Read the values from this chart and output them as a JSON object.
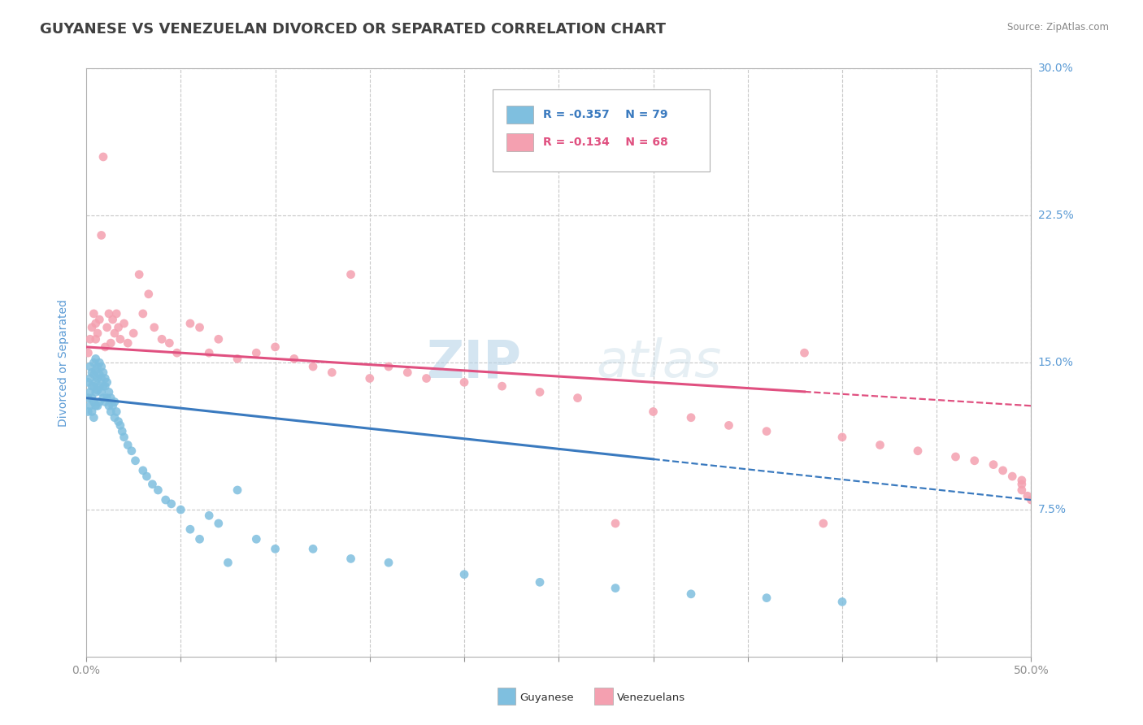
{
  "title": "GUYANESE VS VENEZUELAN DIVORCED OR SEPARATED CORRELATION CHART",
  "source_text": "Source: ZipAtlas.com",
  "xlabel": "",
  "ylabel": "Divorced or Separated",
  "xlim": [
    0.0,
    0.5
  ],
  "ylim": [
    0.0,
    0.3
  ],
  "ytick_positions": [
    0.075,
    0.15,
    0.225,
    0.3
  ],
  "ytick_labels": [
    "7.5%",
    "15.0%",
    "22.5%",
    "30.0%"
  ],
  "blue_color": "#7fbfdf",
  "pink_color": "#f4a0b0",
  "trend_blue_color": "#3a7abf",
  "trend_pink_color": "#e05080",
  "watermark_zip": "ZIP",
  "watermark_atlas": "atlas",
  "legend_r1": "R = -0.357",
  "legend_n1": "N = 79",
  "legend_r2": "R = -0.134",
  "legend_n2": "N = 68",
  "label1": "Guyanese",
  "label2": "Venezuelans",
  "title_color": "#404040",
  "axis_label_color": "#5b9bd5",
  "tick_label_color": "#5b9bd5",
  "grid_color": "#c8c8c8",
  "blue_trend_y_start": 0.132,
  "blue_trend_y_end": 0.08,
  "blue_trend_x_solid_end": 0.3,
  "blue_trend_x_end": 0.5,
  "pink_trend_y_start": 0.158,
  "pink_trend_y_end": 0.128,
  "pink_trend_x_solid_end": 0.38,
  "pink_trend_x_end": 0.5,
  "blue_scatter_x": [
    0.001,
    0.001,
    0.001,
    0.002,
    0.002,
    0.002,
    0.002,
    0.003,
    0.003,
    0.003,
    0.003,
    0.004,
    0.004,
    0.004,
    0.004,
    0.004,
    0.005,
    0.005,
    0.005,
    0.005,
    0.005,
    0.006,
    0.006,
    0.006,
    0.006,
    0.007,
    0.007,
    0.007,
    0.007,
    0.008,
    0.008,
    0.008,
    0.009,
    0.009,
    0.009,
    0.01,
    0.01,
    0.01,
    0.011,
    0.011,
    0.012,
    0.012,
    0.013,
    0.013,
    0.014,
    0.015,
    0.015,
    0.016,
    0.017,
    0.018,
    0.019,
    0.02,
    0.022,
    0.024,
    0.026,
    0.03,
    0.032,
    0.035,
    0.038,
    0.042,
    0.045,
    0.05,
    0.055,
    0.06,
    0.065,
    0.07,
    0.075,
    0.08,
    0.09,
    0.1,
    0.12,
    0.14,
    0.16,
    0.2,
    0.24,
    0.28,
    0.32,
    0.36,
    0.4
  ],
  "blue_scatter_y": [
    0.14,
    0.132,
    0.125,
    0.148,
    0.142,
    0.135,
    0.128,
    0.145,
    0.138,
    0.132,
    0.125,
    0.15,
    0.144,
    0.138,
    0.13,
    0.122,
    0.152,
    0.146,
    0.14,
    0.135,
    0.128,
    0.148,
    0.142,
    0.136,
    0.128,
    0.15,
    0.144,
    0.138,
    0.13,
    0.148,
    0.142,
    0.135,
    0.145,
    0.138,
    0.132,
    0.142,
    0.138,
    0.13,
    0.14,
    0.132,
    0.135,
    0.128,
    0.132,
    0.125,
    0.128,
    0.13,
    0.122,
    0.125,
    0.12,
    0.118,
    0.115,
    0.112,
    0.108,
    0.105,
    0.1,
    0.095,
    0.092,
    0.088,
    0.085,
    0.08,
    0.078,
    0.075,
    0.065,
    0.06,
    0.072,
    0.068,
    0.048,
    0.085,
    0.06,
    0.055,
    0.055,
    0.05,
    0.048,
    0.042,
    0.038,
    0.035,
    0.032,
    0.03,
    0.028
  ],
  "pink_scatter_x": [
    0.001,
    0.002,
    0.003,
    0.004,
    0.005,
    0.005,
    0.006,
    0.007,
    0.008,
    0.009,
    0.01,
    0.011,
    0.012,
    0.013,
    0.014,
    0.015,
    0.016,
    0.017,
    0.018,
    0.02,
    0.022,
    0.025,
    0.028,
    0.03,
    0.033,
    0.036,
    0.04,
    0.044,
    0.048,
    0.055,
    0.06,
    0.065,
    0.07,
    0.08,
    0.09,
    0.1,
    0.11,
    0.12,
    0.13,
    0.14,
    0.15,
    0.16,
    0.17,
    0.18,
    0.2,
    0.22,
    0.24,
    0.26,
    0.28,
    0.3,
    0.32,
    0.34,
    0.36,
    0.38,
    0.39,
    0.4,
    0.42,
    0.44,
    0.46,
    0.47,
    0.48,
    0.485,
    0.49,
    0.495,
    0.495,
    0.495,
    0.498,
    0.5
  ],
  "pink_scatter_y": [
    0.155,
    0.162,
    0.168,
    0.175,
    0.162,
    0.17,
    0.165,
    0.172,
    0.215,
    0.255,
    0.158,
    0.168,
    0.175,
    0.16,
    0.172,
    0.165,
    0.175,
    0.168,
    0.162,
    0.17,
    0.16,
    0.165,
    0.195,
    0.175,
    0.185,
    0.168,
    0.162,
    0.16,
    0.155,
    0.17,
    0.168,
    0.155,
    0.162,
    0.152,
    0.155,
    0.158,
    0.152,
    0.148,
    0.145,
    0.195,
    0.142,
    0.148,
    0.145,
    0.142,
    0.14,
    0.138,
    0.135,
    0.132,
    0.068,
    0.125,
    0.122,
    0.118,
    0.115,
    0.155,
    0.068,
    0.112,
    0.108,
    0.105,
    0.102,
    0.1,
    0.098,
    0.095,
    0.092,
    0.09,
    0.088,
    0.085,
    0.082,
    0.08
  ],
  "background_color": "#ffffff",
  "title_fontsize": 13,
  "axis_fontsize": 10,
  "legend_fontsize": 10
}
